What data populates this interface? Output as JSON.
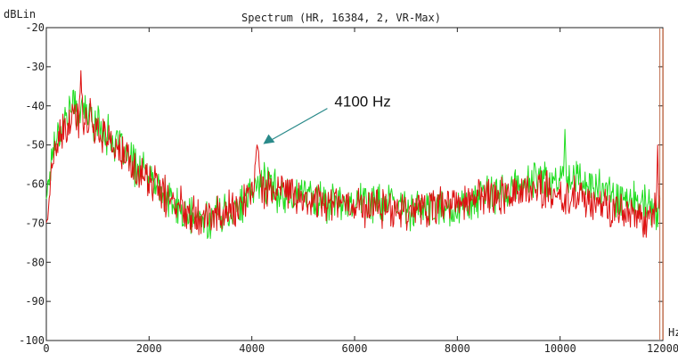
{
  "chart_data": {
    "type": "line",
    "title": "Spectrum (HR, 16384, 2, VR-Max)",
    "ylabel": "dBLin",
    "xlabel": "Hz",
    "xlim": [
      0,
      12000
    ],
    "ylim": [
      -100,
      -20
    ],
    "x_ticks": [
      0,
      2000,
      4000,
      6000,
      8000,
      10000,
      12000
    ],
    "x_tick_labels": [
      "0",
      "2000",
      "4000",
      "6000",
      "8000",
      "10000",
      "12000"
    ],
    "y_ticks": [
      -20,
      -30,
      -40,
      -50,
      -60,
      -70,
      -80,
      -90,
      -100
    ],
    "y_tick_labels": [
      "-20",
      "-30",
      "-40",
      "-50",
      "-60",
      "-70",
      "-80",
      "-90",
      "-100"
    ],
    "grid": false,
    "colors": {
      "red": "#dd1111",
      "green": "#22dd22",
      "annotation": "#2a8a8a",
      "marker": "#c07050"
    },
    "series": [
      {
        "color": "#22dd22",
        "x": [
          0,
          150,
          300,
          500,
          700,
          900,
          1100,
          1300,
          1500,
          1700,
          1900,
          2100,
          2300,
          2500,
          2700,
          2900,
          3100,
          3300,
          3500,
          3700,
          3900,
          4050,
          4200,
          4400,
          4700,
          5000,
          5500,
          6000,
          6500,
          7000,
          7500,
          8000,
          8500,
          9000,
          9300,
          9600,
          9800,
          10000,
          10150,
          10300,
          10500,
          10800,
          11100,
          11400,
          11700,
          11850,
          11950
        ],
        "y": [
          -63,
          -49,
          -45,
          -40,
          -41,
          -43,
          -46,
          -49,
          -52,
          -55,
          -57,
          -60,
          -63,
          -66,
          -68,
          -69,
          -69,
          -68,
          -67,
          -66,
          -65,
          -61,
          -59,
          -61,
          -63,
          -62,
          -65,
          -64,
          -65,
          -66,
          -67,
          -66,
          -63,
          -62,
          -60,
          -58,
          -60,
          -59,
          -57,
          -58,
          -60,
          -61,
          -63,
          -64,
          -66,
          -68,
          -65
        ]
      },
      {
        "color": "#dd1111",
        "x": [
          0,
          150,
          300,
          500,
          700,
          900,
          1100,
          1300,
          1500,
          1700,
          1900,
          2100,
          2300,
          2500,
          2700,
          2900,
          3100,
          3300,
          3500,
          3700,
          3900,
          4050,
          4100,
          4200,
          4400,
          4700,
          5000,
          5500,
          6000,
          6500,
          7000,
          7500,
          8000,
          8500,
          9000,
          9300,
          9600,
          9800,
          10000,
          10300,
          10500,
          10800,
          11100,
          11400,
          11700,
          11850,
          11950
        ],
        "y": [
          -70,
          -52,
          -48,
          -44,
          -42,
          -44,
          -47,
          -50,
          -53,
          -56,
          -58,
          -60,
          -63,
          -65,
          -66,
          -67,
          -68,
          -68,
          -67,
          -66,
          -64,
          -62,
          -50,
          -60,
          -62,
          -62,
          -64,
          -64,
          -65,
          -66,
          -66,
          -66,
          -65,
          -63,
          -62,
          -62,
          -61,
          -62,
          -64,
          -63,
          -64,
          -66,
          -67,
          -68,
          -69,
          -66,
          -67
        ]
      }
    ],
    "spikes": [
      {
        "series": 1,
        "x": 670,
        "y": -31
      },
      {
        "series": 1,
        "x": 4100,
        "y": -50
      },
      {
        "series": 0,
        "x": 10100,
        "y": -46
      },
      {
        "series": 1,
        "x": 11900,
        "y": -50
      }
    ],
    "annotation": {
      "text": "4100 Hz",
      "x": 4100,
      "y": -50
    },
    "marker_line_x": 11950
  }
}
